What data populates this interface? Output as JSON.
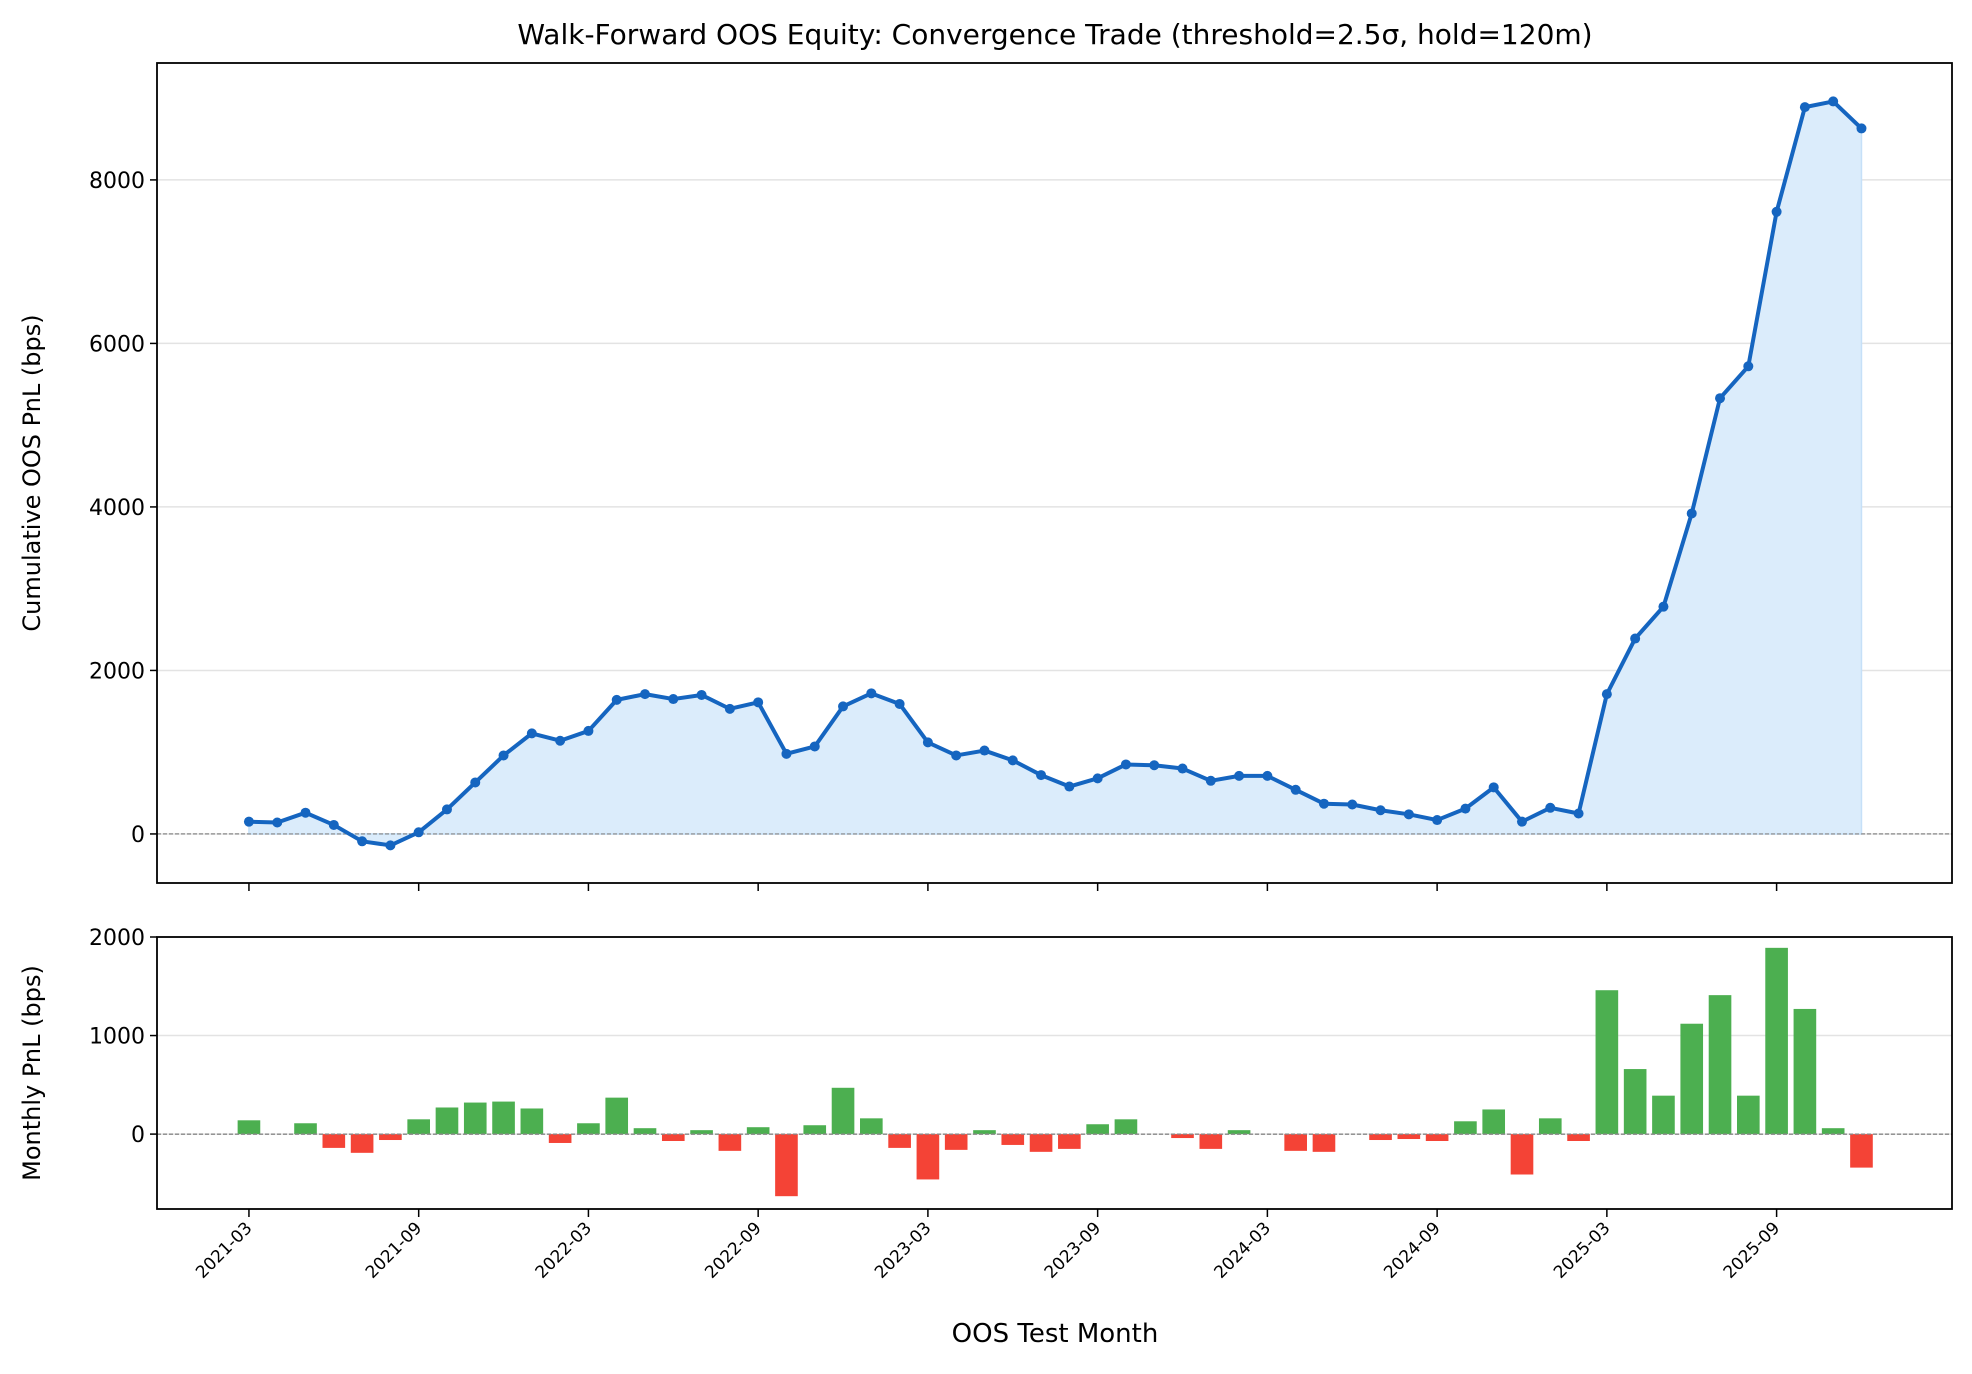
{
  "chart_data": [
    {
      "type": "line",
      "title": "Walk-Forward OOS Equity: Convergence Trade (threshold=2.5σ, hold=120m)",
      "xlabel": "",
      "ylabel": "Cumulative OOS PnL (bps)",
      "ylim": [
        -600,
        9430
      ],
      "yticks": [
        0,
        2000,
        4000,
        6000,
        8000
      ],
      "grid": "horizontal",
      "zero_line": "dashed",
      "fill_under": true,
      "colors": {
        "line": "#1565c0",
        "fill": "#dbecfb"
      },
      "x": [
        "2021-03",
        "2021-04",
        "2021-05",
        "2021-06",
        "2021-07",
        "2021-08",
        "2021-09",
        "2021-10",
        "2021-11",
        "2021-12",
        "2022-01",
        "2022-02",
        "2022-03",
        "2022-04",
        "2022-05",
        "2022-06",
        "2022-07",
        "2022-08",
        "2022-09",
        "2022-10",
        "2022-11",
        "2022-12",
        "2023-01",
        "2023-02",
        "2023-03",
        "2023-04",
        "2023-05",
        "2023-06",
        "2023-07",
        "2023-08",
        "2023-09",
        "2023-10",
        "2023-11",
        "2023-12",
        "2024-01",
        "2024-02",
        "2024-03",
        "2024-04",
        "2024-05",
        "2024-06",
        "2024-07",
        "2024-08",
        "2024-09",
        "2024-10",
        "2024-11",
        "2024-12",
        "2025-01",
        "2025-02",
        "2025-03",
        "2025-04",
        "2025-05",
        "2025-06",
        "2025-07",
        "2025-08",
        "2025-09",
        "2025-10",
        "2025-11",
        "2025-12"
      ],
      "values": [
        150,
        140,
        260,
        110,
        -90,
        -140,
        20,
        300,
        630,
        960,
        1230,
        1140,
        1260,
        1640,
        1710,
        1650,
        1700,
        1530,
        1610,
        980,
        1070,
        1560,
        1720,
        1590,
        1120,
        960,
        1020,
        900,
        720,
        580,
        680,
        850,
        840,
        800,
        650,
        710,
        710,
        540,
        370,
        360,
        290,
        240,
        170,
        310,
        570,
        150,
        320,
        250,
        1710,
        2390,
        2780,
        3920,
        5330,
        5720,
        7610,
        8890,
        8960,
        8630
      ]
    },
    {
      "type": "bar",
      "xlabel": "OOS Test Month",
      "ylabel": "Monthly PnL (bps)",
      "ylim": [
        -760,
        2000
      ],
      "yticks": [
        0,
        1000,
        2000
      ],
      "xticks": [
        "2021-03",
        "2021-09",
        "2022-03",
        "2022-09",
        "2023-03",
        "2023-09",
        "2024-03",
        "2024-09",
        "2025-03",
        "2025-09"
      ],
      "grid": "horizontal",
      "colors": {
        "positive": "#4caf50",
        "negative": "#f44336"
      },
      "values": [
        140,
        0,
        110,
        -140,
        -190,
        -60,
        150,
        270,
        320,
        330,
        260,
        -90,
        110,
        370,
        60,
        -70,
        40,
        -170,
        70,
        -630,
        90,
        470,
        160,
        -140,
        -460,
        -160,
        40,
        -110,
        -180,
        -150,
        100,
        150,
        0,
        -40,
        -150,
        40,
        0,
        -170,
        -180,
        0,
        -60,
        -50,
        -70,
        130,
        250,
        -410,
        160,
        -70,
        1460,
        660,
        390,
        1120,
        1410,
        390,
        1890,
        1270,
        60,
        -340
      ]
    }
  ]
}
